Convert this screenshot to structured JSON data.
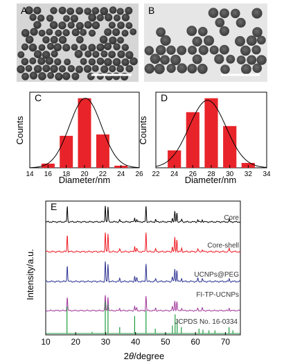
{
  "panels": {
    "A": {
      "letter": "A"
    },
    "B": {
      "letter": "B"
    },
    "C": {
      "letter": "C"
    },
    "D": {
      "letter": "D"
    },
    "E": {
      "letter": "E"
    }
  },
  "chart_data": [
    {
      "panel": "C",
      "type": "bar",
      "xlabel": "Diameter/nm",
      "ylabel": "Counts",
      "xlim": [
        14,
        26
      ],
      "xticks": [
        14,
        16,
        18,
        20,
        22,
        24,
        26
      ],
      "bins": [
        {
          "x": 16,
          "value": 0.06
        },
        {
          "x": 18,
          "value": 0.46
        },
        {
          "x": 20,
          "value": 1.0
        },
        {
          "x": 22,
          "value": 0.48
        },
        {
          "x": 24,
          "value": 0.03
        }
      ],
      "bin_width": 2,
      "bar_fraction": 0.72,
      "fit": {
        "type": "gaussian",
        "mean": 20.1,
        "sigma": 1.75,
        "peak": 1.0
      },
      "bar_color": "#e8242a",
      "fit_color": "#000000"
    },
    {
      "panel": "D",
      "type": "bar",
      "xlabel": "Diameter/nm",
      "ylabel": "Counts",
      "xlim": [
        22,
        34
      ],
      "xticks": [
        22,
        24,
        26,
        28,
        30,
        32,
        34
      ],
      "bins": [
        {
          "x": 24,
          "value": 0.25
        },
        {
          "x": 26,
          "value": 0.8
        },
        {
          "x": 28,
          "value": 1.0
        },
        {
          "x": 30,
          "value": 0.6
        },
        {
          "x": 32,
          "value": 0.07
        }
      ],
      "bin_width": 2,
      "bar_fraction": 0.72,
      "fit": {
        "type": "gaussian",
        "mean": 27.6,
        "sigma": 2.0,
        "peak": 0.97
      },
      "bar_color": "#e8242a",
      "fit_color": "#000000"
    },
    {
      "panel": "E",
      "type": "line",
      "xlabel_prefix": "2",
      "xlabel_theta": "θ",
      "xlabel_suffix": "/degree",
      "ylabel": "Intensity/a.u.",
      "xlim": [
        10,
        75
      ],
      "xticks": [
        10,
        20,
        30,
        40,
        50,
        60,
        70
      ],
      "series": [
        {
          "name": "Core",
          "color": "#000000",
          "peaks": [
            [
              17.2,
              0.75
            ],
            [
              29.9,
              0.82
            ],
            [
              30.8,
              0.72
            ],
            [
              34.7,
              0.1
            ],
            [
              39.7,
              0.2
            ],
            [
              40.4,
              0.12
            ],
            [
              43.5,
              0.75
            ],
            [
              46.7,
              0.1
            ],
            [
              52.3,
              0.18
            ],
            [
              53.1,
              0.5
            ],
            [
              53.8,
              0.45
            ],
            [
              55.4,
              0.12
            ],
            [
              60.8,
              0.1
            ],
            [
              62.3,
              0.1
            ],
            [
              71.3,
              0.1
            ]
          ]
        },
        {
          "name": "Core-shell",
          "color": "#ee1b24",
          "peaks": [
            [
              17.2,
              0.72
            ],
            [
              29.9,
              0.85
            ],
            [
              30.8,
              0.74
            ],
            [
              34.7,
              0.12
            ],
            [
              39.7,
              0.25
            ],
            [
              40.4,
              0.15
            ],
            [
              43.5,
              0.85
            ],
            [
              46.7,
              0.12
            ],
            [
              52.3,
              0.2
            ],
            [
              53.1,
              0.6
            ],
            [
              53.8,
              0.52
            ],
            [
              55.4,
              0.14
            ],
            [
              60.8,
              0.12
            ],
            [
              62.3,
              0.1
            ],
            [
              71.3,
              0.15
            ]
          ]
        },
        {
          "name": "UCNPs@PEG",
          "color": "#2e3192",
          "peaks": [
            [
              17.2,
              0.7
            ],
            [
              29.9,
              0.85
            ],
            [
              30.8,
              0.72
            ],
            [
              34.7,
              0.12
            ],
            [
              39.7,
              0.22
            ],
            [
              40.4,
              0.14
            ],
            [
              43.5,
              0.78
            ],
            [
              46.7,
              0.12
            ],
            [
              52.3,
              0.2
            ],
            [
              53.1,
              0.55
            ],
            [
              53.8,
              0.5
            ],
            [
              55.4,
              0.14
            ],
            [
              60.8,
              0.12
            ],
            [
              62.3,
              0.12
            ],
            [
              71.3,
              0.12
            ]
          ]
        },
        {
          "name": "FI-TP-UCNPs",
          "color": "#a0379a",
          "peaks": [
            [
              17.2,
              0.7
            ],
            [
              29.9,
              0.8
            ],
            [
              30.8,
              0.72
            ],
            [
              34.7,
              0.12
            ],
            [
              39.7,
              0.22
            ],
            [
              40.4,
              0.14
            ],
            [
              43.5,
              0.75
            ],
            [
              46.7,
              0.12
            ],
            [
              52.3,
              0.2
            ],
            [
              53.1,
              0.52
            ],
            [
              53.8,
              0.48
            ],
            [
              55.4,
              0.14
            ],
            [
              60.8,
              0.12
            ],
            [
              62.3,
              0.12
            ],
            [
              71.3,
              0.12
            ]
          ]
        },
        {
          "name": "JCPDS No. 16-0334",
          "color": "#1e9a3c",
          "style": "sticks",
          "peaks": [
            [
              17.1,
              0.85
            ],
            [
              29.9,
              1.0
            ],
            [
              30.8,
              0.9
            ],
            [
              34.7,
              0.2
            ],
            [
              39.7,
              0.55
            ],
            [
              43.5,
              0.72
            ],
            [
              46.6,
              0.15
            ],
            [
              52.3,
              0.25
            ],
            [
              53.2,
              0.6
            ],
            [
              53.9,
              0.42
            ],
            [
              55.3,
              0.2
            ],
            [
              61.2,
              0.15
            ],
            [
              62.5,
              0.12
            ],
            [
              64.5,
              0.1
            ],
            [
              66.5,
              0.1
            ],
            [
              71.2,
              0.2
            ],
            [
              72.5,
              0.1
            ],
            [
              25.5,
              0.05
            ]
          ]
        }
      ]
    }
  ]
}
